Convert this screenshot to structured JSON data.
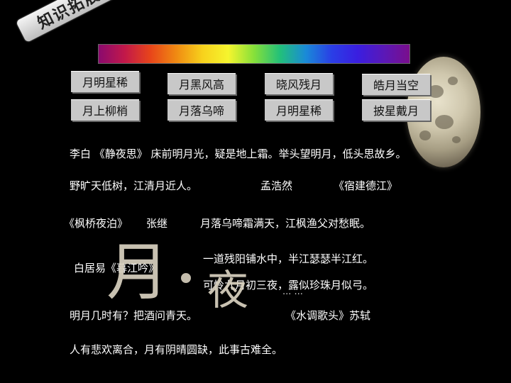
{
  "tag": "知识拓展",
  "buttons": [
    "月明星稀",
    "月黑风高",
    "晓风残月",
    "皓月当空",
    "月上柳梢",
    "月落乌啼",
    "月明星稀",
    "披星戴月"
  ],
  "lines": [
    "李白 《静夜思》 床前明月光，疑是地上霜。举头望明月，低头思故乡。",
    "野旷天低树，江清月近人。",
    "孟浩然",
    "《宿建德江》",
    "《枫桥夜泊》",
    "张继",
    "月落乌啼霜满天，江枫渔父对愁眠。",
    "一道残阳铺水中，半江瑟瑟半江红。",
    "白居易《暮江吟》",
    "可怜九月初三夜，露似珍珠月似弓。",
    "明月几时有？把酒问青天。",
    "《水调歌头》苏轼",
    "人有悲欢离合，月有阴晴圆缺，此事古难全。"
  ],
  "calligraphy": [
    "月",
    "夜"
  ],
  "glitch_text": "... ..."
}
